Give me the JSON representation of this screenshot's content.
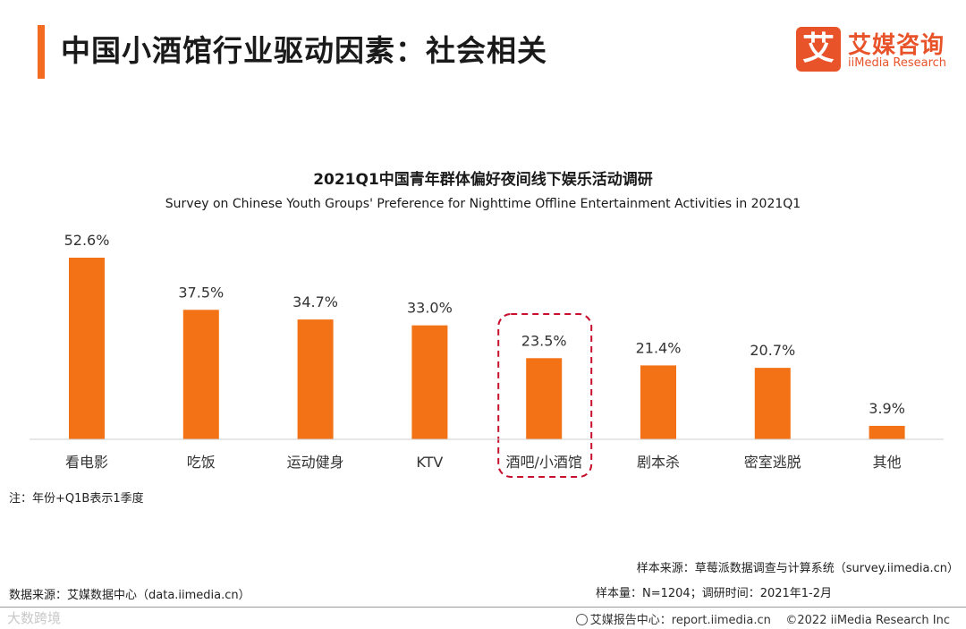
{
  "header": {
    "title": "中国小酒馆行业驱动因素：社会相关",
    "logo_mark": "艾",
    "logo_cn": "艾媒咨询",
    "logo_en": "iiMedia Research"
  },
  "chart_data": {
    "type": "bar",
    "title": "2021Q1中国青年群体偏好夜间线下娱乐活动调研",
    "subtitle": "Survey on Chinese Youth Groups' Preference for Nighttime Offline Entertainment Activities in 2021Q1",
    "categories": [
      "看电影",
      "吃饭",
      "运动健身",
      "KTV",
      "酒吧/小酒馆",
      "剧本杀",
      "密室逃脱",
      "其他"
    ],
    "values": [
      52.6,
      37.5,
      34.7,
      33.0,
      23.5,
      21.4,
      20.7,
      3.9
    ],
    "value_labels": [
      "52.6%",
      "37.5%",
      "34.7%",
      "33.0%",
      "23.5%",
      "21.4%",
      "20.7%",
      "3.9%"
    ],
    "unit": "%",
    "ylim": [
      0,
      52.6
    ],
    "grid": false,
    "highlighted_category": "酒吧/小酒馆",
    "bar_color": "#f47216",
    "highlight_color": "#c8102e"
  },
  "notes": {
    "note": "注：年份+Q1B表示1季度",
    "sample_source": "样本来源：草莓派数据调查与计算系统（survey.iimedia.cn）",
    "sample_size": "样本量：N=1204；调研时间：2021年1-2月",
    "data_source": "数据来源：艾媒数据中心（data.iimedia.cn）"
  },
  "footer": {
    "watermark": "大数跨境",
    "report_center": "艾媒报告中心：report.iimedia.cn",
    "copyright": "©2022  iiMedia Research  Inc"
  }
}
